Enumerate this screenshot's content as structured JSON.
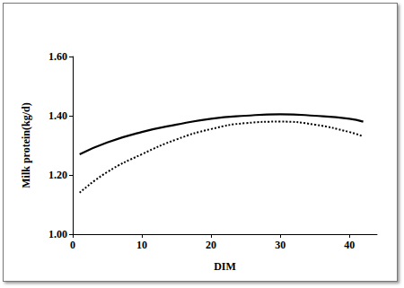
{
  "chart_data": {
    "type": "line",
    "x_label": "DIM",
    "y_label": "Milk protein(kg/d)",
    "x": [
      1,
      5,
      10,
      15,
      20,
      25,
      30,
      35,
      40,
      42
    ],
    "series": [
      {
        "color": "#000000",
        "line_style": "solid",
        "values": [
          1.27,
          1.31,
          1.345,
          1.37,
          1.39,
          1.4,
          1.405,
          1.4,
          1.39,
          1.38
        ]
      },
      {
        "color": "#000000",
        "line_style": "dotted",
        "values": [
          1.14,
          1.21,
          1.27,
          1.32,
          1.355,
          1.375,
          1.38,
          1.37,
          1.345,
          1.33
        ]
      }
    ],
    "xlim": [
      0,
      44
    ],
    "xticks": [
      0,
      10,
      20,
      30,
      40
    ],
    "ylim": [
      1.0,
      1.6
    ],
    "yticks": [
      {
        "value": 1.0,
        "label": "1.00"
      },
      {
        "value": 1.2,
        "label": "1.20"
      },
      {
        "value": 1.4,
        "label": "1.40"
      },
      {
        "value": 1.6,
        "label": "1.60"
      }
    ],
    "grid": false
  }
}
